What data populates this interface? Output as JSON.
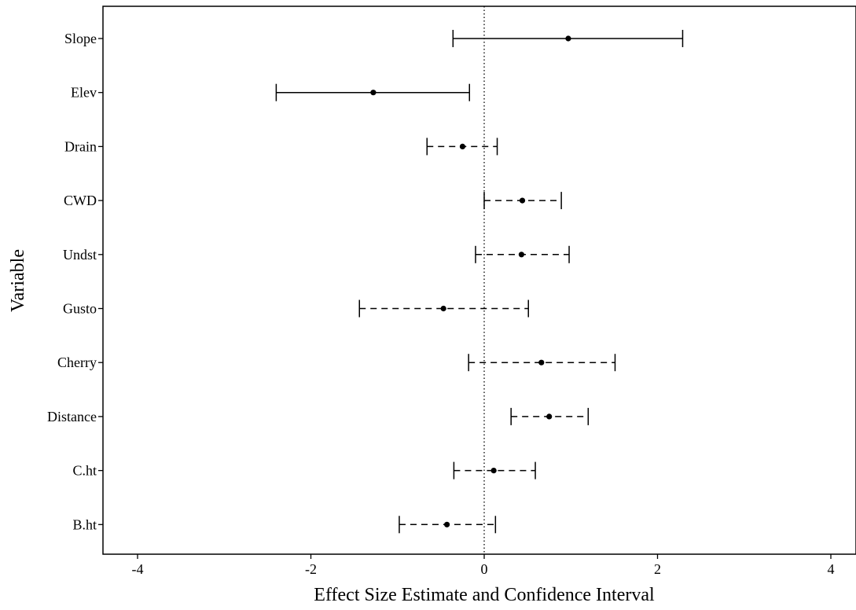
{
  "chart_data": {
    "type": "forest",
    "title": "",
    "xlabel": "Effect Size Estimate and Confidence Interval",
    "ylabel": "Variable",
    "xlim": [
      -4.4,
      4.2
    ],
    "xticks": [
      -4,
      -2,
      0,
      2,
      4
    ],
    "xtick_labels": [
      "-4",
      "-2",
      "0",
      "2",
      "4"
    ],
    "reference_line": 0,
    "grid": false,
    "rows": [
      {
        "label": "Slope",
        "estimate": 0.97,
        "lower": -0.36,
        "upper": 2.29,
        "line_style": "solid"
      },
      {
        "label": "Elev",
        "estimate": -1.28,
        "lower": -2.4,
        "upper": -0.17,
        "line_style": "solid"
      },
      {
        "label": "Drain",
        "estimate": -0.25,
        "lower": -0.66,
        "upper": 0.15,
        "line_style": "dashed"
      },
      {
        "label": "CWD",
        "estimate": 0.44,
        "lower": 0.0,
        "upper": 0.89,
        "line_style": "dashed"
      },
      {
        "label": "Undst",
        "estimate": 0.43,
        "lower": -0.1,
        "upper": 0.98,
        "line_style": "dashed"
      },
      {
        "label": "Gusto",
        "estimate": -0.47,
        "lower": -1.44,
        "upper": 0.51,
        "line_style": "dashed"
      },
      {
        "label": "Cherry",
        "estimate": 0.66,
        "lower": -0.18,
        "upper": 1.51,
        "line_style": "dashed"
      },
      {
        "label": "Distance",
        "estimate": 0.75,
        "lower": 0.31,
        "upper": 1.2,
        "line_style": "dashed"
      },
      {
        "label": "C.ht",
        "estimate": 0.11,
        "lower": -0.35,
        "upper": 0.59,
        "line_style": "dashed"
      },
      {
        "label": "B.ht",
        "estimate": -0.43,
        "lower": -0.98,
        "upper": 0.13,
        "line_style": "dashed"
      }
    ],
    "colors": {
      "line": "#000000",
      "point": "#000000",
      "background": "#ffffff"
    }
  }
}
